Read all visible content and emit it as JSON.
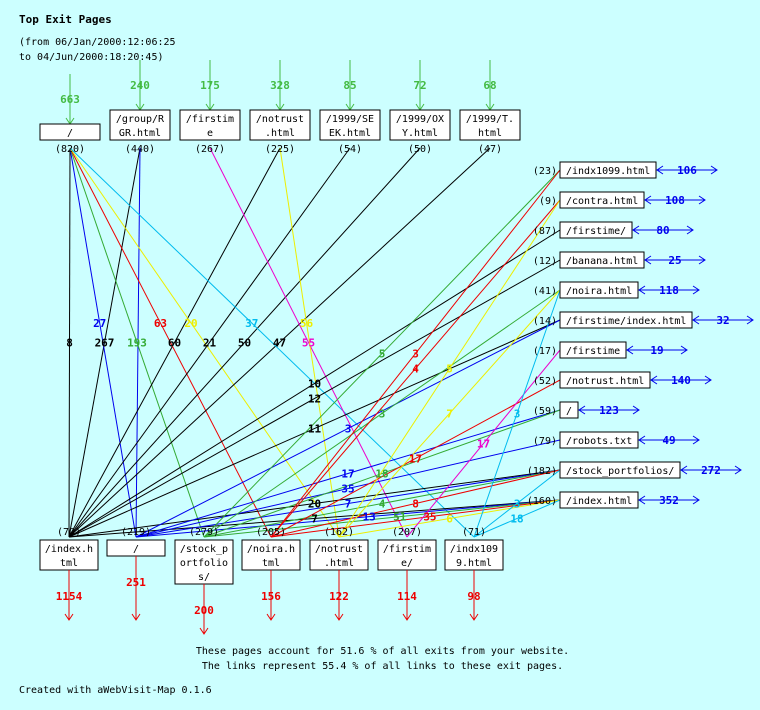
{
  "title": "Top Exit Pages",
  "range_line1": "(from 06/Jan/2000:12:06:25",
  "range_line2": "to 04/Jun/2000:18:20:45)",
  "colors": {
    "incoming": "#44bb44",
    "outgoing": "#ee0000",
    "side": "#0000ee",
    "bg": "#ccffff"
  },
  "top_nodes": [
    {
      "lines": [
        "/"
      ],
      "count": "(820)",
      "incoming": "663"
    },
    {
      "lines": [
        "/group/R",
        "GR.html"
      ],
      "count": "(440)",
      "incoming": "240"
    },
    {
      "lines": [
        "/firstim",
        "e"
      ],
      "count": "(267)",
      "incoming": "175"
    },
    {
      "lines": [
        "/notrust",
        ".html"
      ],
      "count": "(225)",
      "incoming": "328"
    },
    {
      "lines": [
        "/1999/SE",
        "EK.html"
      ],
      "count": "(54)",
      "incoming": "85"
    },
    {
      "lines": [
        "/1999/OX",
        "Y.html"
      ],
      "count": "(50)",
      "incoming": "72"
    },
    {
      "lines": [
        "/1999/T.",
        "html"
      ],
      "count": "(47)",
      "incoming": "68"
    }
  ],
  "bottom_nodes": [
    {
      "lines": [
        "/index.h",
        "tml"
      ],
      "count": "(70)",
      "outgoing": "1154",
      "color": "#000000"
    },
    {
      "lines": [
        "/"
      ],
      "count": "(219)",
      "outgoing": "251",
      "color": "#0000ee"
    },
    {
      "lines": [
        "/stock_p",
        "ortfolio",
        "s/"
      ],
      "count": "(279)",
      "outgoing": "200",
      "color": "#33aa33"
    },
    {
      "lines": [
        "/noira.h",
        "tml"
      ],
      "count": "(205)",
      "outgoing": "156",
      "color": "#ee0000"
    },
    {
      "lines": [
        "/notrust",
        ".html"
      ],
      "count": "(162)",
      "outgoing": "122",
      "color": "#eeee00"
    },
    {
      "lines": [
        "/firstim",
        "e/"
      ],
      "count": "(207)",
      "outgoing": "114",
      "color": "#ee00cc"
    },
    {
      "lines": [
        "/indx109",
        "9.html"
      ],
      "count": "(71)",
      "outgoing": "98",
      "color": "#00bbee"
    }
  ],
  "right_nodes": [
    {
      "label": "/indx1099.html",
      "count": "(23)",
      "side": "106"
    },
    {
      "label": "/contra.html",
      "count": "(9)",
      "side": "108"
    },
    {
      "label": "/firstime/",
      "count": "(87)",
      "side": "80"
    },
    {
      "label": "/banana.html",
      "count": "(12)",
      "side": "25"
    },
    {
      "label": "/noira.html",
      "count": "(41)",
      "side": "118"
    },
    {
      "label": "/firstime/index.html",
      "count": "(14)",
      "side": "32"
    },
    {
      "label": "/firstime",
      "count": "(17)",
      "side": "19"
    },
    {
      "label": "/notrust.html",
      "count": "(52)",
      "side": "140"
    },
    {
      "label": "/",
      "count": "(59)",
      "side": "123"
    },
    {
      "label": "/robots.txt",
      "count": "(79)",
      "side": "49"
    },
    {
      "label": "/stock_portfolios/",
      "count": "(182)",
      "side": "272"
    },
    {
      "label": "/index.html",
      "count": "(160)",
      "side": "352"
    }
  ],
  "top_edges": [
    {
      "from": 0,
      "to": 0,
      "label": "8"
    },
    {
      "from": 1,
      "to": 0,
      "label": "267"
    },
    {
      "from": 0,
      "to": 1,
      "label": "27"
    },
    {
      "from": 1,
      "to": 1,
      "label": ""
    },
    {
      "from": 0,
      "to": 2,
      "label": "193"
    },
    {
      "from": 3,
      "to": 0,
      "label": "60"
    },
    {
      "from": 0,
      "to": 3,
      "label": "63"
    },
    {
      "from": 4,
      "to": 0,
      "label": "21"
    },
    {
      "from": 0,
      "to": 4,
      "label": "20"
    },
    {
      "from": 5,
      "to": 0,
      "label": "50"
    },
    {
      "from": 6,
      "to": 0,
      "label": "47"
    },
    {
      "from": 0,
      "to": 6,
      "label": "37"
    },
    {
      "from": 2,
      "to": 5,
      "label": "55"
    },
    {
      "from": 3,
      "to": 4,
      "label": "56"
    }
  ],
  "side_edges": [
    {
      "from": 0,
      "to": 2,
      "label": "10"
    },
    {
      "from": 0,
      "to": 3,
      "label": "12"
    },
    {
      "from": 0,
      "to": 5,
      "label": "11"
    },
    {
      "from": 0,
      "to": 10,
      "label": "20"
    },
    {
      "from": 0,
      "to": 11,
      "label": "7"
    },
    {
      "from": 1,
      "to": 5,
      "label": "3"
    },
    {
      "from": 1,
      "to": 8,
      "label": "17"
    },
    {
      "from": 1,
      "to": 9,
      "label": "35"
    },
    {
      "from": 1,
      "to": 10,
      "label": "7"
    },
    {
      "from": 1,
      "to": 11,
      "label": "13"
    },
    {
      "from": 2,
      "to": 0,
      "label": "5"
    },
    {
      "from": 2,
      "to": 4,
      "label": "3"
    },
    {
      "from": 2,
      "to": 8,
      "label": "18"
    },
    {
      "from": 2,
      "to": 10,
      "label": "4"
    },
    {
      "from": 2,
      "to": 11,
      "label": "51"
    },
    {
      "from": 3,
      "to": 0,
      "label": "3"
    },
    {
      "from": 3,
      "to": 1,
      "label": "4"
    },
    {
      "from": 3,
      "to": 7,
      "label": "17"
    },
    {
      "from": 3,
      "to": 10,
      "label": "8"
    },
    {
      "from": 3,
      "to": 11,
      "label": "35"
    },
    {
      "from": 4,
      "to": 1,
      "label": "5"
    },
    {
      "from": 4,
      "to": 4,
      "label": "7"
    },
    {
      "from": 4,
      "to": 11,
      "label": "6"
    },
    {
      "from": 5,
      "to": 6,
      "label": "17"
    },
    {
      "from": 6,
      "to": 4,
      "label": "3"
    },
    {
      "from": 6,
      "to": 10,
      "label": "3"
    },
    {
      "from": 6,
      "to": 11,
      "label": "18"
    }
  ],
  "footer_line1": "These pages account for 51.6 % of all exits from your website.",
  "footer_line2": "The links represent 55.4 % of all links to these exit pages.",
  "credit": "Created with aWebVisit-Map 0.1.6"
}
